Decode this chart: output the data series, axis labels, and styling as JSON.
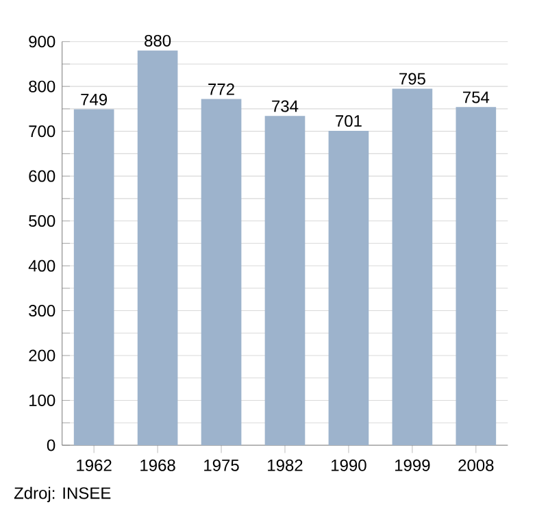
{
  "chart_data": {
    "type": "bar",
    "categories": [
      "1962",
      "1968",
      "1975",
      "1982",
      "1990",
      "1999",
      "2008"
    ],
    "values": [
      749,
      880,
      772,
      734,
      701,
      795,
      754
    ],
    "color": "#9db3cc",
    "data_labels": true,
    "grid": "y",
    "ylim": [
      0,
      900
    ],
    "yticks": [
      0,
      {
        "value": 50,
        "label": null
      },
      100,
      {
        "value": 150,
        "label": null
      },
      200,
      {
        "value": 250,
        "label": null
      },
      300,
      {
        "value": 350,
        "label": null
      },
      400,
      {
        "value": 450,
        "label": null
      },
      500,
      {
        "value": 550,
        "label": null
      },
      600,
      {
        "value": 650,
        "label": null
      },
      700,
      {
        "value": 750,
        "label": null
      },
      800,
      {
        "value": 850,
        "label": null
      },
      900
    ],
    "annotations": [
      "Zdroj: INSEE"
    ]
  }
}
